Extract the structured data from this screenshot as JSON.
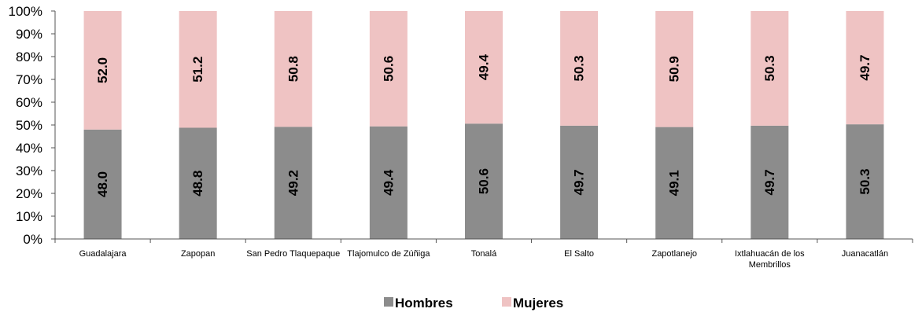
{
  "chart_data": {
    "type": "bar",
    "stacked": true,
    "categories": [
      "Guadalajara",
      "Zapopan",
      "San Pedro Tlaquepaque",
      "Tlajomulco de Zúñiga",
      "Tonalá",
      "El Salto",
      "Zapotlanejo",
      "Ixtlahuacán de los Membrillos",
      "Juanacatlán"
    ],
    "series": [
      {
        "name": "Hombres",
        "color": "#8c8c8c",
        "values": [
          48.0,
          48.8,
          49.2,
          49.4,
          50.6,
          49.7,
          49.1,
          49.7,
          50.3
        ]
      },
      {
        "name": "Mujeres",
        "color": "#efc3c3",
        "values": [
          52.0,
          51.2,
          50.8,
          50.6,
          49.4,
          50.3,
          50.9,
          50.3,
          49.7
        ]
      }
    ],
    "ylim": [
      0,
      100
    ],
    "yticks": [
      "0%",
      "10%",
      "20%",
      "30%",
      "40%",
      "50%",
      "60%",
      "70%",
      "80%",
      "90%",
      "100%"
    ],
    "legend_position": "bottom-center",
    "grid": false
  }
}
